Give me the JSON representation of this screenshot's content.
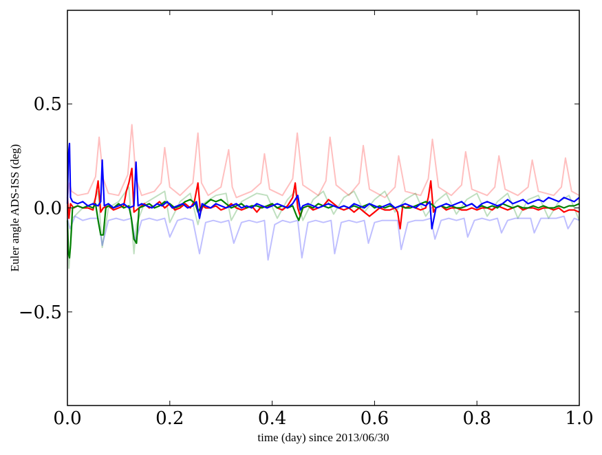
{
  "chart_data": {
    "type": "line",
    "title": "",
    "xlabel": "time (day) since 2013/06/30",
    "ylabel": "Euler angle ADS-ISS (deg)",
    "xlim": [
      0.0,
      1.0
    ],
    "ylim": [
      -0.95,
      0.95
    ],
    "xticks": [
      0.0,
      0.2,
      0.4,
      0.6,
      0.8,
      1.0
    ],
    "xtick_labels": [
      "0.0",
      "0.2",
      "0.4",
      "0.6",
      "0.8",
      "1.0"
    ],
    "yticks": [
      0.5,
      0.0,
      -0.5
    ],
    "ytick_labels": [
      "0.5",
      "0.0",
      "−0.5"
    ],
    "grid": false,
    "legend": "none",
    "colors": {
      "red": "#ff0000",
      "green": "#008000",
      "blue": "#0000ff"
    },
    "background_series": [
      {
        "color": "#ff0000",
        "opacity": 0.25,
        "x": [
          0.0,
          0.004,
          0.008,
          0.02,
          0.04,
          0.055,
          0.062,
          0.07,
          0.08,
          0.1,
          0.118,
          0.126,
          0.134,
          0.145,
          0.17,
          0.183,
          0.19,
          0.2,
          0.22,
          0.245,
          0.255,
          0.262,
          0.275,
          0.3,
          0.315,
          0.322,
          0.33,
          0.36,
          0.378,
          0.385,
          0.395,
          0.42,
          0.44,
          0.449,
          0.46,
          0.49,
          0.505,
          0.513,
          0.525,
          0.55,
          0.57,
          0.578,
          0.59,
          0.62,
          0.64,
          0.647,
          0.66,
          0.69,
          0.705,
          0.713,
          0.725,
          0.75,
          0.77,
          0.778,
          0.79,
          0.82,
          0.835,
          0.843,
          0.855,
          0.88,
          0.9,
          0.908,
          0.92,
          0.95,
          0.965,
          0.973,
          0.985,
          1.0
        ],
        "y": [
          0.05,
          0.12,
          0.08,
          0.06,
          0.07,
          0.15,
          0.34,
          0.14,
          0.07,
          0.06,
          0.16,
          0.4,
          0.14,
          0.06,
          0.08,
          0.12,
          0.29,
          0.1,
          0.06,
          0.12,
          0.36,
          0.12,
          0.06,
          0.1,
          0.28,
          0.1,
          0.05,
          0.08,
          0.12,
          0.26,
          0.09,
          0.06,
          0.14,
          0.36,
          0.11,
          0.06,
          0.13,
          0.34,
          0.11,
          0.06,
          0.12,
          0.3,
          0.09,
          0.05,
          0.1,
          0.25,
          0.08,
          0.06,
          0.14,
          0.33,
          0.1,
          0.06,
          0.11,
          0.27,
          0.09,
          0.06,
          0.1,
          0.25,
          0.09,
          0.06,
          0.1,
          0.23,
          0.08,
          0.06,
          0.1,
          0.24,
          0.08,
          0.06
        ]
      },
      {
        "color": "#008000",
        "opacity": 0.25,
        "x": [
          0.0,
          0.003,
          0.01,
          0.03,
          0.05,
          0.06,
          0.068,
          0.08,
          0.1,
          0.12,
          0.13,
          0.135,
          0.15,
          0.17,
          0.19,
          0.2,
          0.22,
          0.24,
          0.255,
          0.265,
          0.29,
          0.31,
          0.32,
          0.34,
          0.37,
          0.39,
          0.41,
          0.43,
          0.445,
          0.46,
          0.48,
          0.5,
          0.52,
          0.54,
          0.56,
          0.58,
          0.6,
          0.62,
          0.64,
          0.66,
          0.68,
          0.7,
          0.72,
          0.74,
          0.76,
          0.78,
          0.8,
          0.82,
          0.84,
          0.86,
          0.88,
          0.9,
          0.92,
          0.94,
          0.96,
          0.98,
          1.0
        ],
        "y": [
          -0.1,
          -0.29,
          -0.05,
          0.0,
          0.02,
          0.08,
          -0.19,
          0.0,
          0.03,
          0.1,
          -0.22,
          -0.08,
          0.02,
          0.05,
          0.08,
          -0.07,
          0.03,
          0.07,
          -0.08,
          0.02,
          0.06,
          0.07,
          -0.06,
          0.03,
          0.07,
          0.06,
          -0.05,
          0.04,
          0.08,
          -0.06,
          0.04,
          0.08,
          -0.03,
          0.05,
          0.08,
          -0.02,
          0.04,
          0.08,
          -0.02,
          0.04,
          0.07,
          -0.04,
          0.03,
          0.07,
          -0.03,
          0.04,
          0.07,
          -0.04,
          0.03,
          0.07,
          -0.05,
          0.04,
          0.06,
          -0.05,
          0.03,
          0.06,
          -0.06
        ]
      },
      {
        "color": "#0000ff",
        "opacity": 0.25,
        "x": [
          0.0,
          0.005,
          0.015,
          0.03,
          0.045,
          0.06,
          0.068,
          0.08,
          0.095,
          0.11,
          0.125,
          0.133,
          0.145,
          0.16,
          0.175,
          0.19,
          0.2,
          0.215,
          0.23,
          0.245,
          0.258,
          0.27,
          0.285,
          0.3,
          0.315,
          0.325,
          0.34,
          0.355,
          0.37,
          0.385,
          0.392,
          0.405,
          0.42,
          0.435,
          0.45,
          0.458,
          0.47,
          0.485,
          0.5,
          0.515,
          0.522,
          0.535,
          0.55,
          0.565,
          0.58,
          0.588,
          0.6,
          0.615,
          0.63,
          0.645,
          0.652,
          0.665,
          0.68,
          0.695,
          0.71,
          0.718,
          0.73,
          0.745,
          0.76,
          0.775,
          0.782,
          0.795,
          0.81,
          0.825,
          0.84,
          0.848,
          0.86,
          0.875,
          0.89,
          0.905,
          0.912,
          0.925,
          0.94,
          0.955,
          0.97,
          0.978,
          0.99,
          1.0
        ],
        "y": [
          -0.05,
          -0.1,
          -0.04,
          -0.06,
          -0.05,
          -0.05,
          -0.18,
          -0.06,
          -0.05,
          -0.06,
          -0.05,
          -0.16,
          -0.06,
          -0.05,
          -0.06,
          -0.05,
          -0.14,
          -0.06,
          -0.05,
          -0.06,
          -0.22,
          -0.07,
          -0.06,
          -0.07,
          -0.06,
          -0.17,
          -0.07,
          -0.06,
          -0.07,
          -0.06,
          -0.25,
          -0.08,
          -0.06,
          -0.07,
          -0.06,
          -0.24,
          -0.07,
          -0.06,
          -0.07,
          -0.06,
          -0.22,
          -0.07,
          -0.06,
          -0.07,
          -0.06,
          -0.17,
          -0.07,
          -0.06,
          -0.06,
          -0.06,
          -0.2,
          -0.07,
          -0.06,
          -0.06,
          -0.05,
          -0.15,
          -0.06,
          -0.05,
          -0.06,
          -0.05,
          -0.14,
          -0.06,
          -0.05,
          -0.06,
          -0.05,
          -0.12,
          -0.06,
          -0.05,
          -0.05,
          -0.05,
          -0.12,
          -0.05,
          -0.05,
          -0.05,
          -0.04,
          -0.1,
          -0.05,
          -0.06
        ]
      }
    ],
    "series": [
      {
        "color": "#ff0000",
        "x": [
          0.0,
          0.003,
          0.006,
          0.012,
          0.02,
          0.03,
          0.04,
          0.05,
          0.055,
          0.06,
          0.065,
          0.07,
          0.08,
          0.09,
          0.1,
          0.11,
          0.115,
          0.12,
          0.126,
          0.13,
          0.14,
          0.15,
          0.16,
          0.17,
          0.18,
          0.19,
          0.2,
          0.21,
          0.22,
          0.23,
          0.24,
          0.248,
          0.255,
          0.26,
          0.265,
          0.27,
          0.28,
          0.29,
          0.3,
          0.31,
          0.32,
          0.33,
          0.34,
          0.35,
          0.36,
          0.37,
          0.38,
          0.39,
          0.4,
          0.41,
          0.42,
          0.43,
          0.44,
          0.445,
          0.45,
          0.455,
          0.46,
          0.47,
          0.48,
          0.49,
          0.5,
          0.51,
          0.52,
          0.53,
          0.54,
          0.55,
          0.56,
          0.57,
          0.58,
          0.59,
          0.6,
          0.61,
          0.62,
          0.63,
          0.64,
          0.645,
          0.65,
          0.655,
          0.66,
          0.67,
          0.68,
          0.69,
          0.7,
          0.705,
          0.71,
          0.715,
          0.72,
          0.73,
          0.74,
          0.75,
          0.76,
          0.77,
          0.78,
          0.79,
          0.8,
          0.81,
          0.82,
          0.83,
          0.84,
          0.85,
          0.86,
          0.87,
          0.88,
          0.89,
          0.9,
          0.91,
          0.92,
          0.93,
          0.94,
          0.95,
          0.96,
          0.97,
          0.98,
          0.99,
          1.0
        ],
        "y": [
          0.05,
          -0.05,
          0.02,
          0.0,
          0.01,
          0.0,
          0.0,
          -0.01,
          0.05,
          0.13,
          -0.02,
          0.0,
          0.01,
          -0.01,
          0.0,
          0.01,
          0.08,
          0.12,
          0.19,
          -0.02,
          0.0,
          0.02,
          0.0,
          0.01,
          0.03,
          0.0,
          0.02,
          -0.01,
          0.0,
          0.02,
          0.0,
          0.03,
          0.12,
          -0.02,
          0.01,
          0.0,
          0.0,
          0.01,
          -0.01,
          0.0,
          0.02,
          0.0,
          -0.01,
          0.0,
          0.01,
          -0.02,
          0.01,
          0.0,
          0.02,
          0.0,
          -0.01,
          0.01,
          0.05,
          0.12,
          0.0,
          -0.04,
          0.0,
          0.01,
          -0.01,
          0.0,
          0.01,
          0.04,
          0.02,
          0.0,
          -0.01,
          0.0,
          -0.02,
          0.0,
          -0.02,
          -0.04,
          -0.02,
          0.0,
          -0.01,
          -0.01,
          0.0,
          -0.02,
          -0.1,
          0.01,
          0.0,
          0.01,
          0.0,
          -0.01,
          0.0,
          0.05,
          0.13,
          -0.02,
          0.0,
          0.01,
          -0.01,
          0.0,
          0.0,
          -0.01,
          -0.01,
          0.0,
          -0.01,
          0.0,
          0.0,
          -0.01,
          0.01,
          0.0,
          -0.01,
          0.0,
          0.01,
          -0.01,
          0.0,
          0.0,
          -0.01,
          0.0,
          0.0,
          -0.01,
          0.0,
          -0.02,
          -0.01,
          -0.01,
          -0.02
        ]
      },
      {
        "color": "#008000",
        "x": [
          0.0,
          0.002,
          0.004,
          0.006,
          0.01,
          0.02,
          0.03,
          0.04,
          0.05,
          0.055,
          0.06,
          0.065,
          0.07,
          0.075,
          0.08,
          0.09,
          0.1,
          0.11,
          0.12,
          0.125,
          0.13,
          0.135,
          0.14,
          0.15,
          0.16,
          0.17,
          0.18,
          0.19,
          0.2,
          0.21,
          0.22,
          0.23,
          0.24,
          0.25,
          0.255,
          0.26,
          0.27,
          0.28,
          0.29,
          0.3,
          0.31,
          0.32,
          0.33,
          0.34,
          0.35,
          0.36,
          0.37,
          0.38,
          0.39,
          0.4,
          0.41,
          0.42,
          0.43,
          0.44,
          0.448,
          0.452,
          0.46,
          0.47,
          0.48,
          0.49,
          0.5,
          0.51,
          0.52,
          0.53,
          0.54,
          0.55,
          0.56,
          0.57,
          0.58,
          0.59,
          0.6,
          0.61,
          0.62,
          0.63,
          0.64,
          0.65,
          0.66,
          0.67,
          0.68,
          0.69,
          0.7,
          0.71,
          0.72,
          0.73,
          0.74,
          0.75,
          0.76,
          0.77,
          0.78,
          0.79,
          0.8,
          0.81,
          0.82,
          0.83,
          0.84,
          0.85,
          0.86,
          0.87,
          0.88,
          0.89,
          0.9,
          0.91,
          0.92,
          0.93,
          0.94,
          0.95,
          0.96,
          0.97,
          0.98,
          0.99,
          1.0
        ],
        "y": [
          -0.06,
          -0.22,
          -0.24,
          -0.18,
          0.0,
          0.01,
          0.0,
          0.01,
          0.0,
          0.02,
          -0.06,
          -0.13,
          -0.13,
          0.0,
          0.01,
          0.0,
          0.02,
          0.0,
          0.01,
          -0.05,
          -0.15,
          -0.17,
          0.0,
          0.01,
          0.02,
          0.0,
          0.01,
          0.03,
          0.02,
          0.0,
          0.01,
          0.03,
          0.04,
          0.02,
          -0.02,
          0.0,
          0.02,
          0.04,
          0.03,
          0.04,
          0.02,
          0.0,
          0.01,
          0.02,
          0.0,
          0.01,
          0.01,
          0.0,
          0.01,
          0.02,
          0.0,
          0.01,
          0.0,
          0.01,
          -0.04,
          -0.06,
          0.0,
          0.01,
          0.0,
          0.02,
          0.01,
          0.0,
          0.01,
          0.0,
          0.01,
          0.0,
          0.01,
          0.0,
          0.01,
          0.02,
          0.0,
          0.01,
          0.0,
          0.01,
          0.0,
          0.01,
          0.0,
          0.0,
          0.01,
          0.02,
          0.03,
          0.02,
          0.0,
          0.01,
          0.0,
          0.01,
          0.0,
          0.0,
          0.01,
          0.02,
          0.0,
          0.01,
          0.0,
          0.01,
          0.0,
          0.02,
          0.01,
          0.0,
          0.01,
          0.0,
          0.0,
          0.01,
          0.0,
          0.01,
          0.0,
          0.0,
          0.01,
          0.0,
          0.01,
          0.01,
          0.02
        ]
      },
      {
        "color": "#0000ff",
        "x": [
          0.0,
          0.002,
          0.004,
          0.006,
          0.01,
          0.02,
          0.03,
          0.04,
          0.05,
          0.06,
          0.065,
          0.068,
          0.072,
          0.08,
          0.09,
          0.1,
          0.11,
          0.12,
          0.13,
          0.134,
          0.138,
          0.145,
          0.155,
          0.165,
          0.175,
          0.185,
          0.195,
          0.205,
          0.215,
          0.225,
          0.235,
          0.245,
          0.252,
          0.258,
          0.263,
          0.27,
          0.28,
          0.29,
          0.3,
          0.31,
          0.32,
          0.33,
          0.34,
          0.35,
          0.36,
          0.37,
          0.38,
          0.39,
          0.4,
          0.41,
          0.42,
          0.43,
          0.44,
          0.45,
          0.455,
          0.46,
          0.47,
          0.48,
          0.49,
          0.5,
          0.51,
          0.52,
          0.53,
          0.54,
          0.55,
          0.56,
          0.57,
          0.58,
          0.59,
          0.6,
          0.61,
          0.62,
          0.63,
          0.64,
          0.65,
          0.66,
          0.67,
          0.68,
          0.69,
          0.7,
          0.708,
          0.712,
          0.72,
          0.73,
          0.74,
          0.75,
          0.76,
          0.77,
          0.78,
          0.79,
          0.8,
          0.81,
          0.82,
          0.83,
          0.84,
          0.85,
          0.86,
          0.87,
          0.88,
          0.89,
          0.9,
          0.91,
          0.92,
          0.93,
          0.94,
          0.95,
          0.96,
          0.97,
          0.98,
          0.99,
          1.0
        ],
        "y": [
          0.02,
          0.26,
          0.31,
          0.05,
          0.03,
          0.02,
          0.03,
          0.01,
          0.02,
          0.01,
          0.03,
          0.23,
          0.01,
          0.02,
          0.0,
          0.01,
          0.02,
          0.0,
          0.01,
          0.22,
          0.01,
          0.02,
          0.01,
          0.0,
          0.02,
          0.01,
          0.03,
          0.0,
          0.01,
          0.02,
          0.0,
          0.01,
          0.03,
          -0.05,
          0.02,
          0.01,
          0.0,
          0.02,
          0.01,
          0.0,
          0.01,
          0.02,
          0.0,
          0.01,
          0.0,
          0.02,
          0.01,
          0.0,
          0.01,
          0.02,
          0.01,
          0.0,
          0.02,
          0.06,
          -0.01,
          0.01,
          0.02,
          0.01,
          0.0,
          0.01,
          0.02,
          0.01,
          0.0,
          0.01,
          0.0,
          0.02,
          0.01,
          0.0,
          0.02,
          0.01,
          0.0,
          0.01,
          0.02,
          0.0,
          0.01,
          0.02,
          0.01,
          0.0,
          0.02,
          0.01,
          0.03,
          -0.1,
          0.0,
          0.01,
          0.02,
          0.01,
          0.02,
          0.03,
          0.01,
          0.02,
          0.0,
          0.02,
          0.03,
          0.02,
          0.01,
          0.02,
          0.04,
          0.02,
          0.03,
          0.04,
          0.02,
          0.03,
          0.04,
          0.03,
          0.05,
          0.04,
          0.03,
          0.05,
          0.04,
          0.03,
          0.05
        ]
      }
    ]
  }
}
